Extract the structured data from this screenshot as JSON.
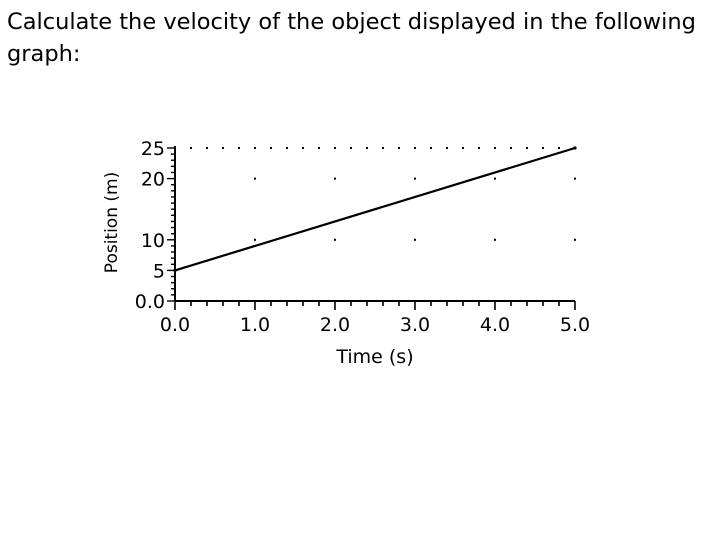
{
  "question": "Calculate the velocity of the object displayed in the following graph:",
  "chart_data": {
    "type": "line",
    "title": "",
    "xlabel": "Time (s)",
    "ylabel": "Position (m)",
    "xlim": [
      0,
      5
    ],
    "ylim": [
      0,
      25
    ],
    "x_ticks": [
      0,
      1,
      2,
      3,
      4,
      5
    ],
    "x_tick_labels": [
      "0.0",
      "1.0",
      "2.0",
      "3.0",
      "4.0",
      "5.0"
    ],
    "y_ticks": [
      0,
      5,
      10,
      20,
      25
    ],
    "y_tick_labels": [
      "0.0",
      "5",
      "10",
      "20",
      "25"
    ],
    "grid": "dotted",
    "series": [
      {
        "x": [
          0,
          5
        ],
        "y": [
          5,
          25
        ],
        "color": "#000000"
      }
    ]
  }
}
